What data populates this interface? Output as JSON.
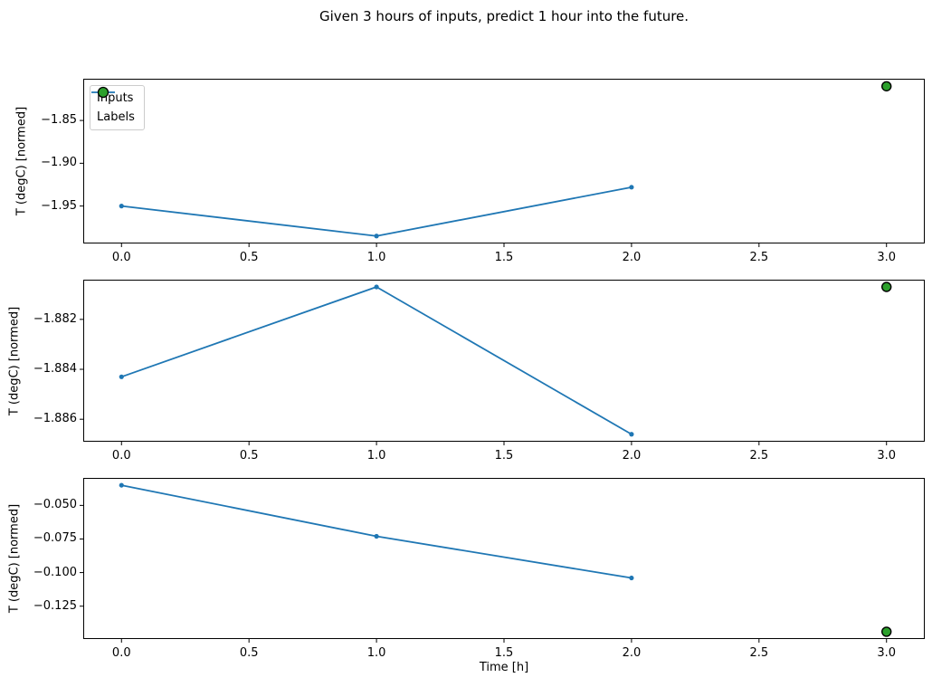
{
  "figure": {
    "title": "Given 3 hours of inputs, predict 1 hour into the future.",
    "xlabel": "Time [h]",
    "background": "#ffffff",
    "colors": {
      "inputs_line": "#1f77b4",
      "labels_marker_fill": "#2ca02c",
      "labels_marker_edge": "#000000",
      "spine": "#000000",
      "tick": "#000000",
      "text": "#000000",
      "legend_border": "#cccccc"
    },
    "legend": {
      "inputs": "Inputs",
      "labels": "Labels",
      "position": "upper left"
    }
  },
  "chart_data": [
    {
      "type": "line",
      "ylabel": "T (degC) [normed]",
      "x": [
        0,
        1,
        2
      ],
      "series": [
        {
          "name": "Inputs",
          "type": "line",
          "values": [
            -1.95,
            -1.985,
            -1.928
          ]
        }
      ],
      "labels_point": {
        "name": "Labels",
        "type": "scatter",
        "x": 3,
        "value": -1.81
      },
      "xlim": [
        -0.15,
        3.15
      ],
      "ylim": [
        -1.99375,
        -1.80125
      ],
      "xticks": {
        "values": [
          0.0,
          0.5,
          1.0,
          1.5,
          2.0,
          2.5,
          3.0
        ],
        "labels": [
          "0.0",
          "0.5",
          "1.0",
          "1.5",
          "2.0",
          "2.5",
          "3.0"
        ]
      },
      "yticks": {
        "values": [
          -1.85,
          -1.9,
          -1.95
        ],
        "labels": [
          "−1.85",
          "−1.90",
          "−1.95"
        ]
      },
      "grid": false,
      "legend_visible": true
    },
    {
      "type": "line",
      "ylabel": "T (degC) [normed]",
      "x": [
        0,
        1,
        2
      ],
      "series": [
        {
          "name": "Inputs",
          "type": "line",
          "values": [
            -1.8843,
            -1.8807,
            -1.8866
          ]
        }
      ],
      "labels_point": {
        "name": "Labels",
        "type": "scatter",
        "x": 3,
        "value": -1.8807
      },
      "xlim": [
        -0.15,
        3.15
      ],
      "ylim": [
        -1.8869,
        -1.88041
      ],
      "xticks": {
        "values": [
          0.0,
          0.5,
          1.0,
          1.5,
          2.0,
          2.5,
          3.0
        ],
        "labels": [
          "0.0",
          "0.5",
          "1.0",
          "1.5",
          "2.0",
          "2.5",
          "3.0"
        ]
      },
      "yticks": {
        "values": [
          -1.882,
          -1.884,
          -1.886
        ],
        "labels": [
          "−1.882",
          "−1.884",
          "−1.886"
        ]
      },
      "grid": false,
      "legend_visible": false
    },
    {
      "type": "line",
      "ylabel": "T (degC) [normed]",
      "x": [
        0,
        1,
        2
      ],
      "series": [
        {
          "name": "Inputs",
          "type": "line",
          "values": [
            -0.035,
            -0.073,
            -0.104
          ]
        }
      ],
      "labels_point": {
        "name": "Labels",
        "type": "scatter",
        "x": 3,
        "value": -0.144
      },
      "xlim": [
        -0.15,
        3.15
      ],
      "ylim": [
        -0.14945,
        -0.02955
      ],
      "xticks": {
        "values": [
          0.0,
          0.5,
          1.0,
          1.5,
          2.0,
          2.5,
          3.0
        ],
        "labels": [
          "0.0",
          "0.5",
          "1.0",
          "1.5",
          "2.0",
          "2.5",
          "3.0"
        ]
      },
      "yticks": {
        "values": [
          -0.05,
          -0.075,
          -0.1,
          -0.125
        ],
        "labels": [
          "−0.050",
          "−0.075",
          "−0.100",
          "−0.125"
        ]
      },
      "grid": false,
      "legend_visible": false
    }
  ]
}
